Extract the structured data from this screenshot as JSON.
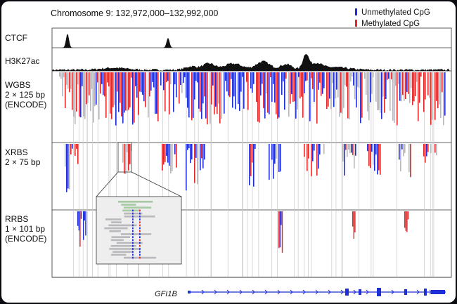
{
  "title": "Chromosome 9: 132,972,000–132,992,000",
  "legend": [
    {
      "label": "Unmethylated CpG",
      "color": "#1f2fd6"
    },
    {
      "label": "Methylated CpG",
      "color": "#e02a2a"
    }
  ],
  "tracks": {
    "ctcf": "CTCF",
    "h3k27ac": "H3K27ac",
    "wgbs": [
      "WGBS",
      "2 × 125 bp",
      "(ENCODE)"
    ],
    "xrbs": [
      "XRBS",
      "2 × 75 bp"
    ],
    "rrbs": [
      "RRBS",
      "1 × 101 bp",
      "(ENCODE)"
    ]
  },
  "gene": "GFI1B",
  "colors": {
    "unmethylated": "#1f2fd6",
    "methylated": "#e02a2a",
    "unknown": "#b8b8bc",
    "gene": "#1f2fd6",
    "inset_bg": "#eeeeee"
  }
}
